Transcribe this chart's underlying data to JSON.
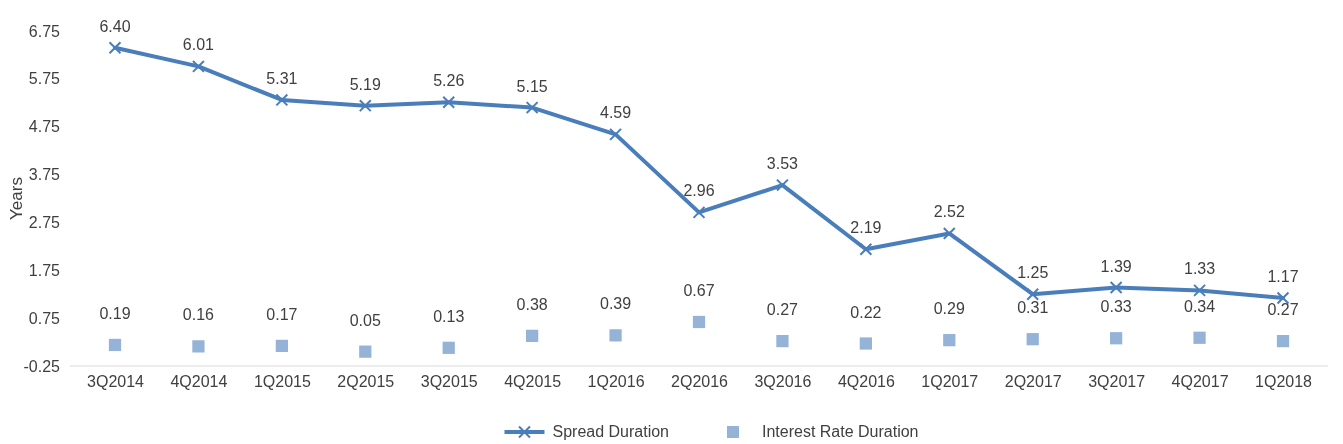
{
  "chart_data": {
    "type": "line",
    "ylabel": "Years",
    "categories": [
      "3Q2014",
      "4Q2014",
      "1Q2015",
      "2Q2015",
      "3Q2015",
      "4Q2015",
      "1Q2016",
      "2Q2016",
      "3Q2016",
      "4Q2016",
      "1Q2017",
      "2Q2017",
      "3Q2017",
      "4Q2017",
      "1Q2018"
    ],
    "series": [
      {
        "name": "Spread Duration",
        "marker": "cross",
        "color": "#4a7ebb",
        "values": [
          6.4,
          6.01,
          5.31,
          5.19,
          5.26,
          5.15,
          4.59,
          2.96,
          3.53,
          2.19,
          2.52,
          1.25,
          1.39,
          1.33,
          1.17
        ],
        "value_labels": [
          "6.40",
          "6.01",
          "5.31",
          "5.19",
          "5.26",
          "5.15",
          "4.59",
          "2.96",
          "3.53",
          "2.19",
          "2.52",
          "1.25",
          "1.39",
          "1.33",
          "1.17"
        ]
      },
      {
        "name": "Interest Rate Duration",
        "type": "scatter",
        "marker": "square",
        "color": "#95b3d7",
        "values": [
          0.19,
          0.16,
          0.17,
          0.05,
          0.13,
          0.38,
          0.39,
          0.67,
          0.27,
          0.22,
          0.29,
          0.31,
          0.33,
          0.34,
          0.27
        ],
        "value_labels": [
          "0.19",
          "0.16",
          "0.17",
          "0.05",
          "0.13",
          "0.38",
          "0.39",
          "0.67",
          "0.27",
          "0.22",
          "0.29",
          "0.31",
          "0.33",
          "0.34",
          "0.27"
        ]
      }
    ],
    "ylim": [
      -0.25,
      6.75
    ],
    "yticks": [
      -0.25,
      0.75,
      1.75,
      2.75,
      3.75,
      4.75,
      5.75,
      6.75
    ],
    "grid": false,
    "legend": "bottom"
  }
}
